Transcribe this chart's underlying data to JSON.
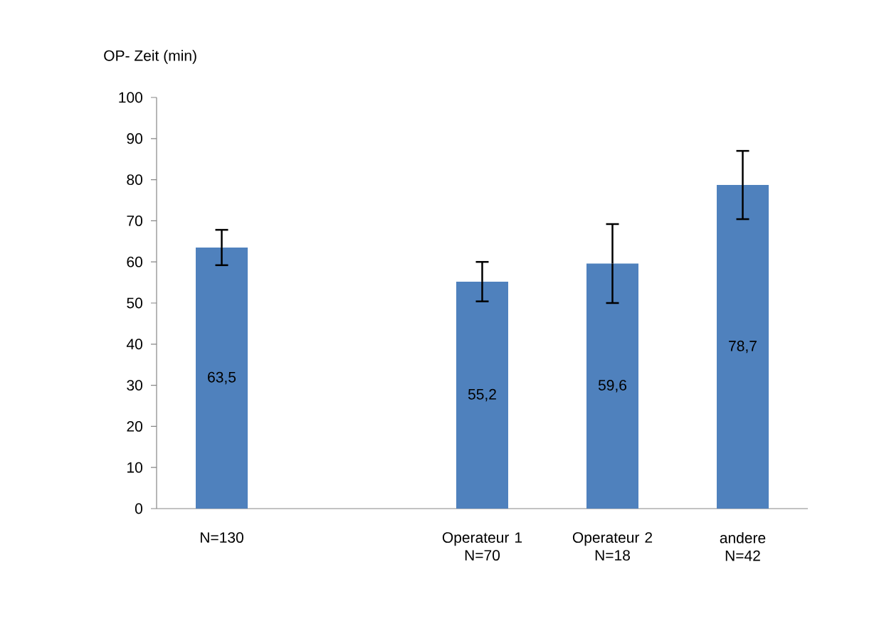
{
  "chart_data": {
    "type": "bar",
    "ylabel": "OP- Zeit (min)",
    "categories": [
      "N=130",
      null,
      "Operateur 1\nN=70",
      "Operateur 2\nN=18",
      "andere\nN=42"
    ],
    "values": [
      63.5,
      null,
      55.2,
      59.6,
      78.7
    ],
    "errors": [
      4.3,
      null,
      4.8,
      9.6,
      8.3
    ],
    "value_labels": [
      "63,5",
      null,
      "55,2",
      "59,6",
      "78,7"
    ],
    "color": "#4f81bd",
    "ylim": [
      0,
      100
    ],
    "yticks": [
      0,
      10,
      20,
      30,
      40,
      50,
      60,
      70,
      80,
      90,
      100
    ],
    "grid": false
  }
}
